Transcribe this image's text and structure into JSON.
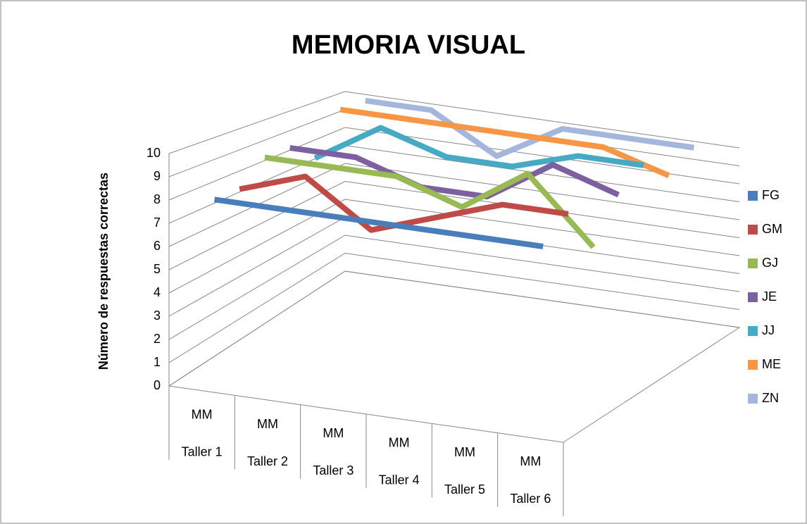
{
  "chart_data": {
    "type": "line3d",
    "title": "MEMORIA VISUAL",
    "y_label": "Número de respuestas correctas",
    "categories": [
      [
        "MM",
        "Taller 1"
      ],
      [
        "MM",
        "Taller 2"
      ],
      [
        "MM",
        "Taller 3"
      ],
      [
        "MM",
        "Taller 4"
      ],
      [
        "MM",
        "Taller 5"
      ],
      [
        "MM",
        "Taller 6"
      ]
    ],
    "series": [
      {
        "name": "FG",
        "color": "#4a7ebb",
        "values": [
          8,
          8,
          8,
          8,
          8,
          8
        ]
      },
      {
        "name": "GM",
        "color": "#be4b48",
        "values": [
          8,
          9,
          7,
          8,
          9,
          9
        ]
      },
      {
        "name": "GJ",
        "color": "#98b954",
        "values": [
          9,
          9,
          9,
          8,
          10,
          7
        ]
      },
      {
        "name": "JE",
        "color": "#7d60a0",
        "values": [
          9,
          9,
          8,
          8,
          10,
          9
        ]
      },
      {
        "name": "JJ",
        "color": "#46aac5",
        "values": [
          8,
          10,
          9,
          9,
          10,
          10
        ]
      },
      {
        "name": "ME",
        "color": "#f79646",
        "values": [
          10,
          10,
          10,
          10,
          10,
          9
        ]
      },
      {
        "name": "ZN",
        "color": "#a5b6dc",
        "values": [
          10,
          10,
          8,
          10,
          10,
          10
        ]
      }
    ],
    "ylim": [
      0,
      10
    ],
    "yticks": [
      0,
      1,
      2,
      3,
      4,
      5,
      6,
      7,
      8,
      9,
      10
    ],
    "grid": true,
    "legend": "right"
  }
}
